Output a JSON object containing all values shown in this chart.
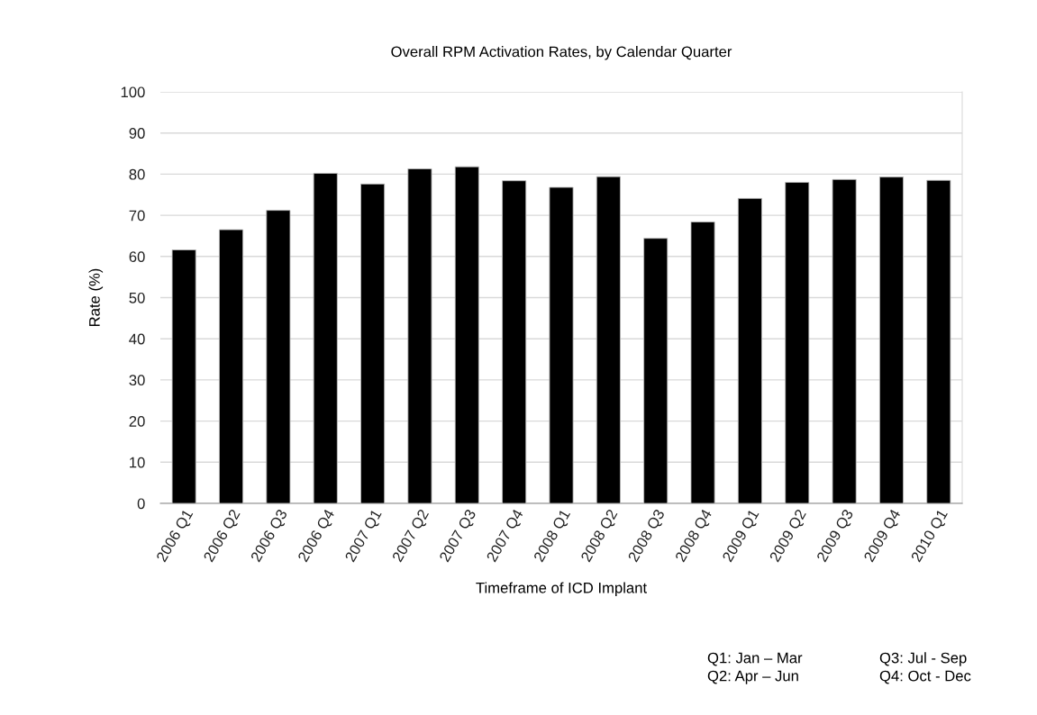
{
  "chart_data": {
    "type": "bar",
    "title": "Overall RPM Activation Rates, by Calendar Quarter",
    "xlabel": "Timeframe of ICD Implant",
    "ylabel": "Rate (%)",
    "categories": [
      "2006 Q1",
      "2006 Q2",
      "2006 Q3",
      "2006 Q4",
      "2007 Q1",
      "2007 Q2",
      "2007 Q3",
      "2007 Q4",
      "2008 Q1",
      "2008 Q2",
      "2008 Q3",
      "2008 Q4",
      "2009 Q1",
      "2009 Q2",
      "2009 Q3",
      "2009 Q4",
      "2010 Q1"
    ],
    "values": [
      61.6,
      66.5,
      71.2,
      80.2,
      77.6,
      81.3,
      81.8,
      78.4,
      76.8,
      79.4,
      64.4,
      68.4,
      74.1,
      78.0,
      78.7,
      79.3,
      78.5
    ],
    "color": "#000000",
    "ylim": [
      0,
      100
    ],
    "yticks": [
      0,
      10,
      20,
      30,
      40,
      50,
      60,
      70,
      80,
      90,
      100
    ],
    "grid": "y",
    "annotations": [
      "Q1: Jan – Mar",
      "Q2: Apr – Jun",
      "Q3: Jul - Sep",
      "Q4: Oct - Dec"
    ]
  }
}
